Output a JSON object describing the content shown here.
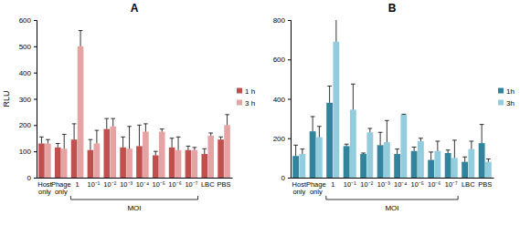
{
  "chart_data": [
    {
      "type": "bar",
      "title": "A",
      "y_label": "RLU",
      "categories": [
        "Host only",
        "Phage only",
        "1",
        "10⁻¹",
        "10⁻²",
        "10⁻³",
        "10⁻⁴",
        "10⁻⁵",
        "10⁻⁶",
        "10⁻⁷",
        "LBC",
        "PBS"
      ],
      "series": [
        {
          "name": "1 h",
          "color": "#c0504d",
          "values": [
            130,
            115,
            145,
            105,
            185,
            115,
            120,
            85,
            115,
            105,
            90,
            145
          ],
          "errors": [
            25,
            15,
            60,
            40,
            40,
            40,
            80,
            15,
            35,
            15,
            20,
            10
          ]
        },
        {
          "name": "3 h",
          "color": "#e6a3a3",
          "values": [
            130,
            110,
            500,
            130,
            195,
            110,
            175,
            175,
            105,
            105,
            160,
            200
          ],
          "errors": [
            15,
            55,
            60,
            50,
            30,
            85,
            30,
            10,
            50,
            10,
            10,
            40
          ]
        }
      ],
      "ylim": [
        0,
        600
      ],
      "yticks": [
        0,
        100,
        200,
        300,
        400,
        500,
        600
      ],
      "annotations": [
        "MOI"
      ],
      "grid": false,
      "legend": "right"
    },
    {
      "type": "bar",
      "title": "B",
      "categories": [
        "Host only",
        "Phage only",
        "1",
        "10⁻¹",
        "10⁻²",
        "10⁻³",
        "10⁻⁴",
        "10⁻⁵",
        "10⁻⁶",
        "10⁻⁷",
        "LBC",
        "PBS"
      ],
      "series": [
        {
          "name": "1h",
          "color": "#31849b",
          "values": [
            110,
            235,
            380,
            160,
            120,
            165,
            120,
            135,
            90,
            125,
            80,
            175
          ],
          "errors": [
            55,
            75,
            85,
            10,
            5,
            65,
            25,
            20,
            40,
            15,
            25,
            95
          ]
        },
        {
          "name": "3h",
          "color": "#93cddd",
          "values": [
            120,
            205,
            690,
            345,
            230,
            180,
            320,
            185,
            135,
            100,
            145,
            80
          ],
          "errors": [
            25,
            55,
            120,
            130,
            20,
            110,
            2,
            15,
            50,
            90,
            40,
            15
          ]
        }
      ],
      "ylim": [
        0,
        800
      ],
      "yticks": [
        0,
        200,
        400,
        600,
        800
      ],
      "annotations": [
        "MOI"
      ],
      "grid": false,
      "legend": "right"
    }
  ]
}
